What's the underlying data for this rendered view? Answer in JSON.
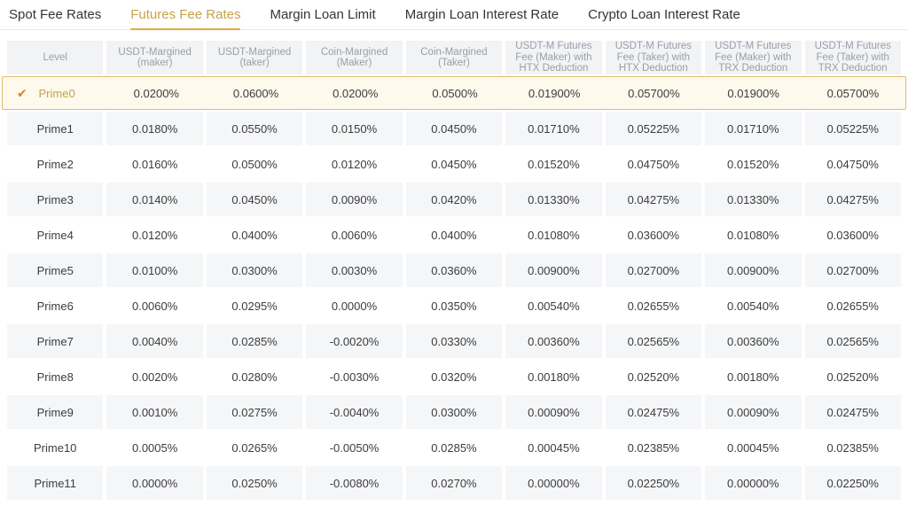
{
  "tabs": [
    {
      "label": "Spot Fee Rates",
      "active": false
    },
    {
      "label": "Futures Fee Rates",
      "active": true
    },
    {
      "label": "Margin Loan Limit",
      "active": false
    },
    {
      "label": "Margin Loan Interest Rate",
      "active": false
    },
    {
      "label": "Crypto Loan Interest Rate",
      "active": false
    }
  ],
  "icons": {
    "check": "✔"
  },
  "colors": {
    "accent_gold": "#c8a24a",
    "underline_gold": "#e3aa3c",
    "check_orange": "#d9871a",
    "selected_bg": "#fdf9ec",
    "selected_border": "#e2bb6e",
    "header_bg": "#f2f3f5",
    "header_text": "#9a9ea6",
    "stripe_bg": "#f5f6f8",
    "body_text": "#3c3c3c",
    "tab_text": "#33343d",
    "divider": "#e9e9ec"
  },
  "table": {
    "columns": [
      "Level",
      "USDT-Margined (maker)",
      "USDT-Margined (taker)",
      "Coin-Margined (Maker)",
      "Coin-Margined (Taker)",
      "USDT-M Futures Fee (Maker) with HTX Deduction",
      "USDT-M Futures Fee (Taker) with HTX Deduction",
      "USDT-M Futures Fee (Maker) with TRX Deduction",
      "USDT-M Futures Fee (Taker) with TRX Deduction"
    ],
    "rows": [
      {
        "level": "Prime0",
        "selected": true,
        "values": [
          "0.0200%",
          "0.0600%",
          "0.0200%",
          "0.0500%",
          "0.01900%",
          "0.05700%",
          "0.01900%",
          "0.05700%"
        ]
      },
      {
        "level": "Prime1",
        "selected": false,
        "values": [
          "0.0180%",
          "0.0550%",
          "0.0150%",
          "0.0450%",
          "0.01710%",
          "0.05225%",
          "0.01710%",
          "0.05225%"
        ]
      },
      {
        "level": "Prime2",
        "selected": false,
        "values": [
          "0.0160%",
          "0.0500%",
          "0.0120%",
          "0.0450%",
          "0.01520%",
          "0.04750%",
          "0.01520%",
          "0.04750%"
        ]
      },
      {
        "level": "Prime3",
        "selected": false,
        "values": [
          "0.0140%",
          "0.0450%",
          "0.0090%",
          "0.0420%",
          "0.01330%",
          "0.04275%",
          "0.01330%",
          "0.04275%"
        ]
      },
      {
        "level": "Prime4",
        "selected": false,
        "values": [
          "0.0120%",
          "0.0400%",
          "0.0060%",
          "0.0400%",
          "0.01080%",
          "0.03600%",
          "0.01080%",
          "0.03600%"
        ]
      },
      {
        "level": "Prime5",
        "selected": false,
        "values": [
          "0.0100%",
          "0.0300%",
          "0.0030%",
          "0.0360%",
          "0.00900%",
          "0.02700%",
          "0.00900%",
          "0.02700%"
        ]
      },
      {
        "level": "Prime6",
        "selected": false,
        "values": [
          "0.0060%",
          "0.0295%",
          "0.0000%",
          "0.0350%",
          "0.00540%",
          "0.02655%",
          "0.00540%",
          "0.02655%"
        ]
      },
      {
        "level": "Prime7",
        "selected": false,
        "values": [
          "0.0040%",
          "0.0285%",
          "-0.0020%",
          "0.0330%",
          "0.00360%",
          "0.02565%",
          "0.00360%",
          "0.02565%"
        ]
      },
      {
        "level": "Prime8",
        "selected": false,
        "values": [
          "0.0020%",
          "0.0280%",
          "-0.0030%",
          "0.0320%",
          "0.00180%",
          "0.02520%",
          "0.00180%",
          "0.02520%"
        ]
      },
      {
        "level": "Prime9",
        "selected": false,
        "values": [
          "0.0010%",
          "0.0275%",
          "-0.0040%",
          "0.0300%",
          "0.00090%",
          "0.02475%",
          "0.00090%",
          "0.02475%"
        ]
      },
      {
        "level": "Prime10",
        "selected": false,
        "values": [
          "0.0005%",
          "0.0265%",
          "-0.0050%",
          "0.0285%",
          "0.00045%",
          "0.02385%",
          "0.00045%",
          "0.02385%"
        ]
      },
      {
        "level": "Prime11",
        "selected": false,
        "values": [
          "0.0000%",
          "0.0250%",
          "-0.0080%",
          "0.0270%",
          "0.00000%",
          "0.02250%",
          "0.00000%",
          "0.02250%"
        ]
      }
    ]
  }
}
